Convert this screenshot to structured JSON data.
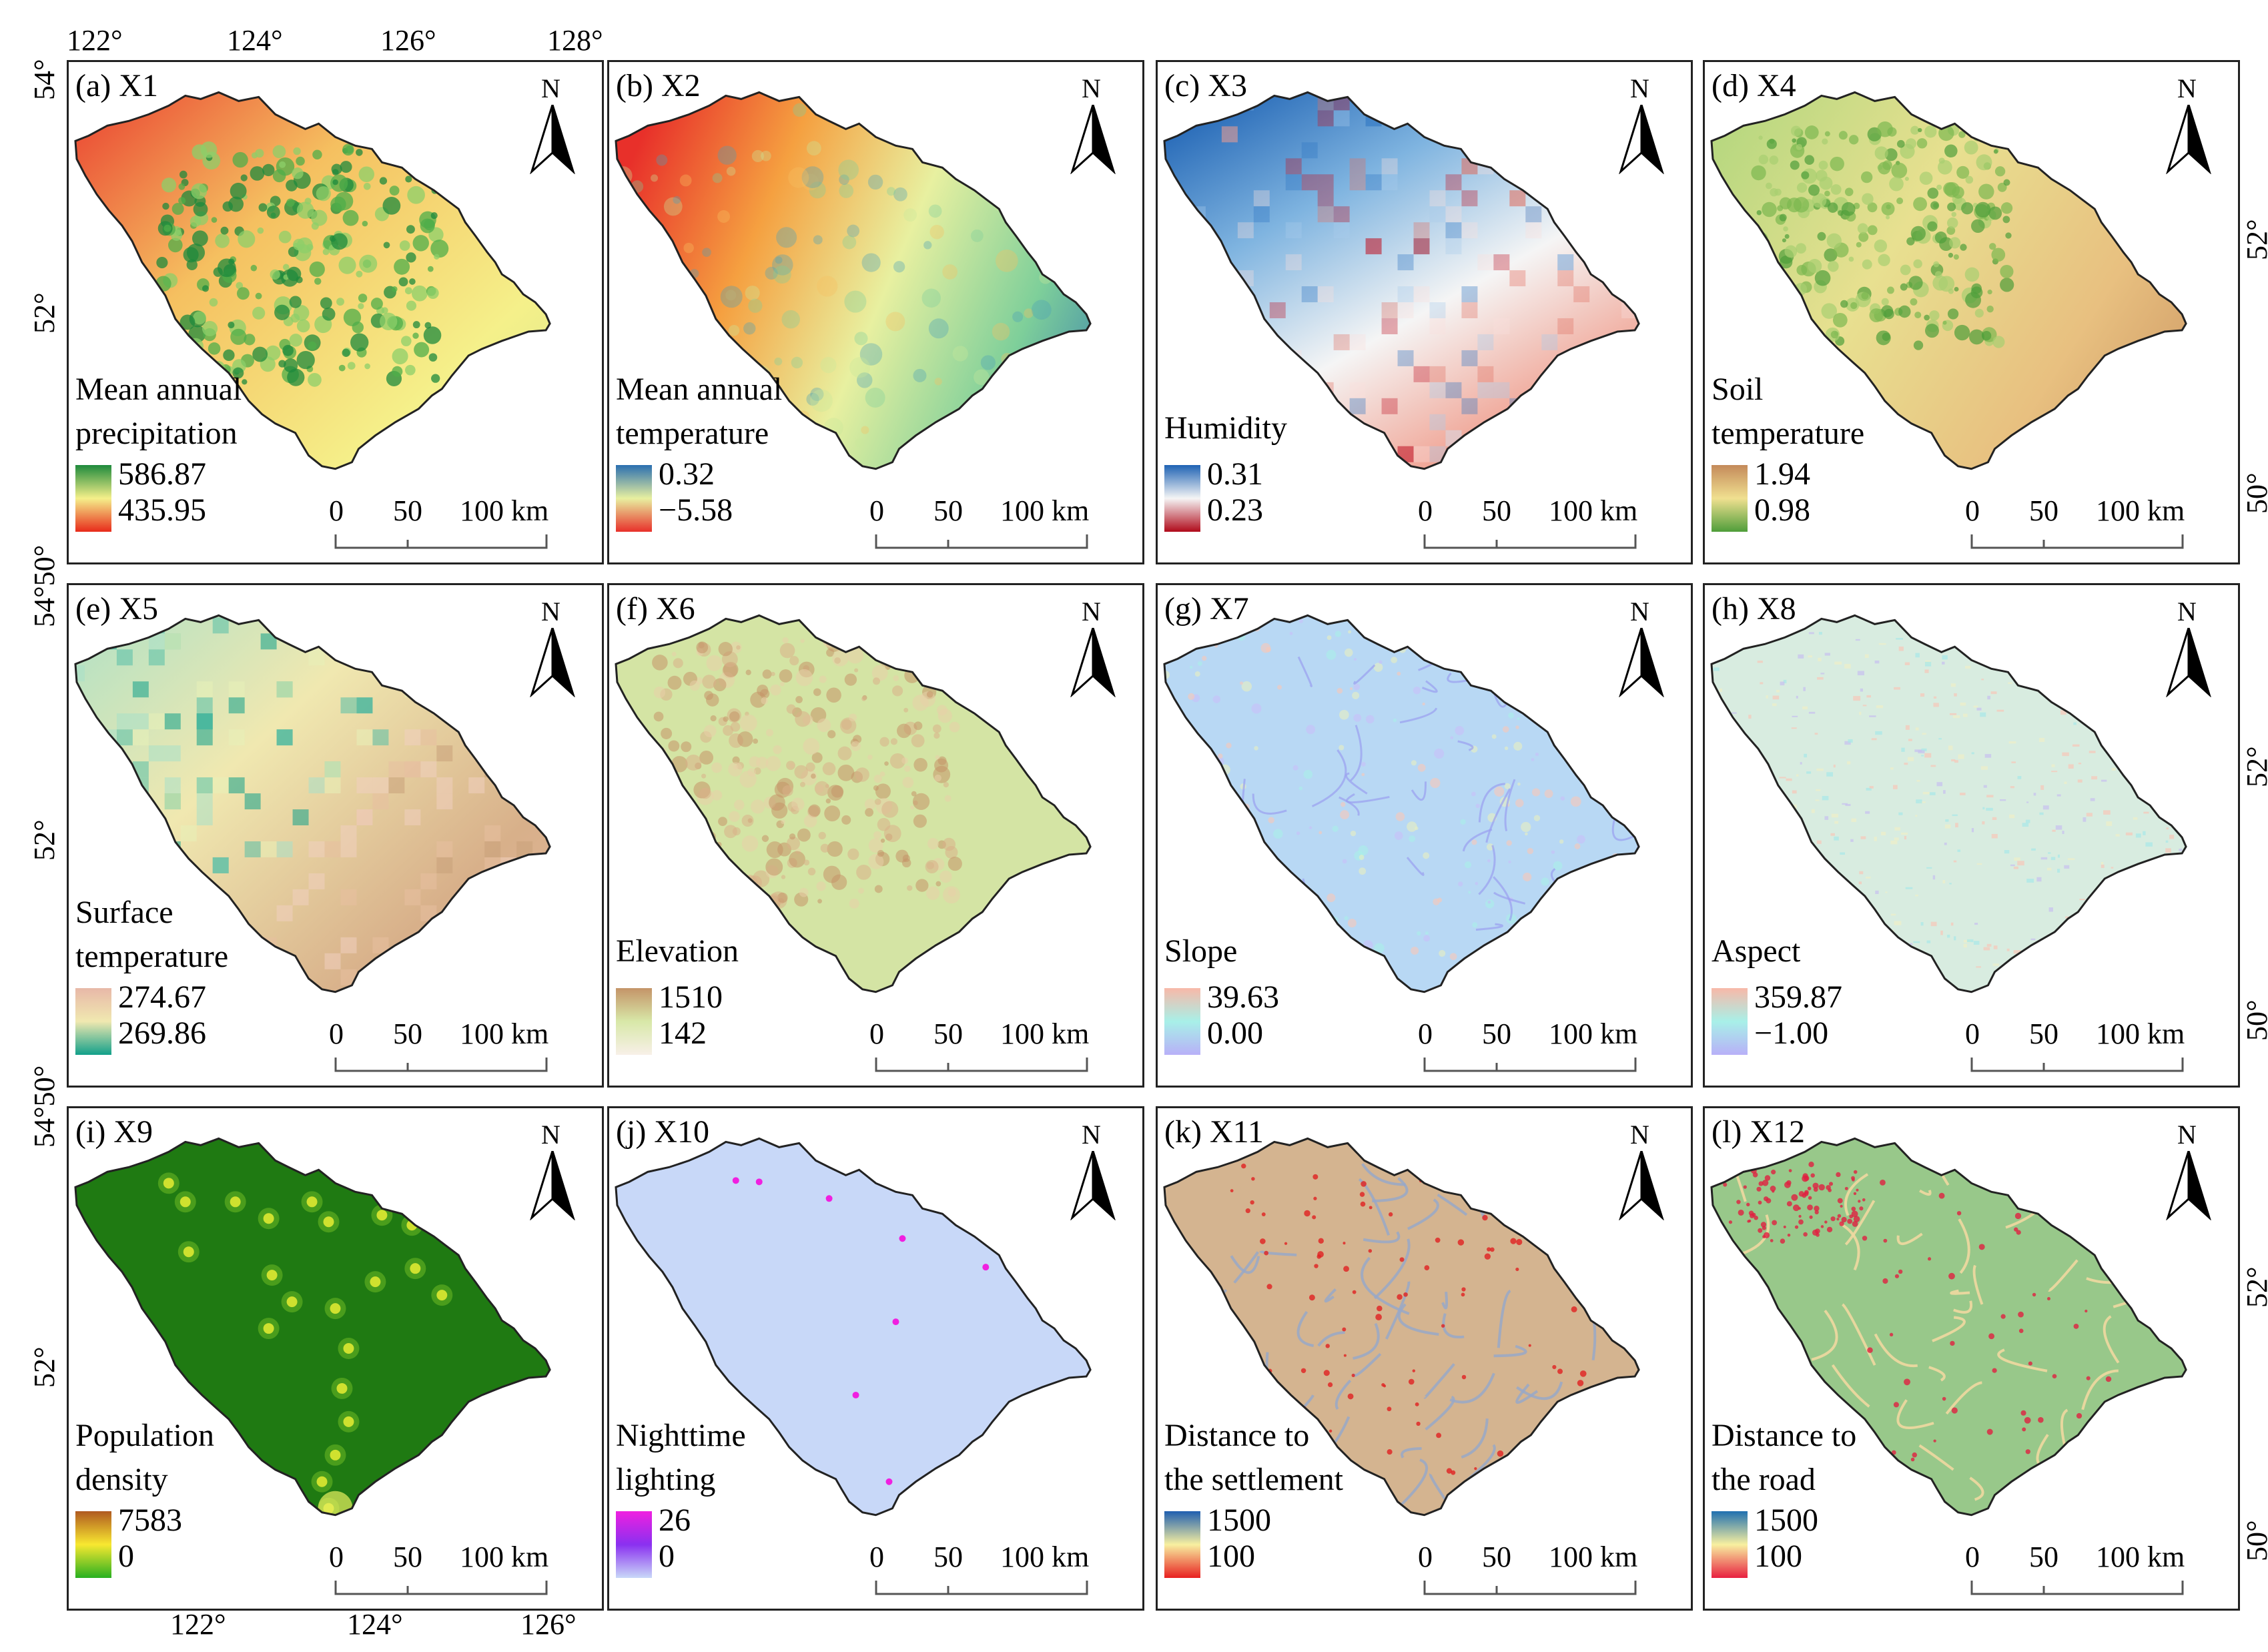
{
  "axes": {
    "top_lon_labels": [
      "122°",
      "124°",
      "126°",
      "128°"
    ],
    "bottom_lon_labels": [
      "122°",
      "124°",
      "126°"
    ],
    "left_lat_labels": [
      "54°",
      "52°",
      "54°50°",
      "52°",
      "54°50°",
      "52°"
    ],
    "right_lat_labels": [
      "52°",
      "50°",
      "52°",
      "50°",
      "52°",
      "50°"
    ]
  },
  "north_arrow": {
    "letter": "N",
    "icon": "north-arrow-icon"
  },
  "scale_bar": {
    "zero": "0",
    "mid": "50",
    "end": "100 km"
  },
  "panels": [
    {
      "id": "X1",
      "label": "(a) X1",
      "legend_title": [
        "Mean annual",
        "precipitation"
      ],
      "max": "586.87",
      "min": "435.95",
      "ramp": [
        "#1e8a3c",
        "#f5f08a",
        "#e82a1a"
      ],
      "pattern": "precip"
    },
    {
      "id": "X2",
      "label": "(b) X2",
      "legend_title": [
        "Mean annual",
        "temperature"
      ],
      "max": "0.32",
      "min": "−5.58",
      "ramp": [
        "#2a6fb0",
        "#e8f0a0",
        "#e8302a"
      ],
      "pattern": "temp"
    },
    {
      "id": "X3",
      "label": "(c) X3",
      "legend_title": [
        "Humidity"
      ],
      "max": "0.31",
      "min": "0.23",
      "ramp": [
        "#1f63b4",
        "#f5f5f5",
        "#b00a1a"
      ],
      "pattern": "humid"
    },
    {
      "id": "X4",
      "label": "(d) X4",
      "legend_title": [
        "Soil",
        "temperature"
      ],
      "max": "1.94",
      "min": "0.98",
      "ramp": [
        "#c48a5a",
        "#f0e090",
        "#4f9e3a"
      ],
      "pattern": "soil"
    },
    {
      "id": "X5",
      "label": "(e) X5",
      "legend_title": [
        "Surface",
        "temperature"
      ],
      "max": "274.67",
      "min": "269.86",
      "ramp": [
        "#e8b8a8",
        "#f0e8b0",
        "#12a08a"
      ],
      "pattern": "surface"
    },
    {
      "id": "X6",
      "label": "(f) X6",
      "legend_title": [
        "Elevation"
      ],
      "max": "1510",
      "min": "142",
      "ramp": [
        "#c49468",
        "#d8e8a8",
        "#f8f0e8"
      ],
      "pattern": "elev"
    },
    {
      "id": "X7",
      "label": "(g) X7",
      "legend_title": [
        "Slope"
      ],
      "max": "39.63",
      "min": "0.00",
      "ramp": [
        "#f8b8a8",
        "#a8f0e8",
        "#b8b0f8"
      ],
      "pattern": "slope"
    },
    {
      "id": "X8",
      "label": "(h) X8",
      "legend_title": [
        "Aspect"
      ],
      "max": "359.87",
      "min": "−1.00",
      "ramp": [
        "#f8b8a8",
        "#a8f0e8",
        "#b8b0f8"
      ],
      "pattern": "aspect"
    },
    {
      "id": "X9",
      "label": "(i) X9",
      "legend_title": [
        "Population",
        "density"
      ],
      "max": "7583",
      "min": "0",
      "ramp": [
        "#b05a20",
        "#f8e830",
        "#28b020"
      ],
      "pattern": "pop"
    },
    {
      "id": "X10",
      "label": "(j) X10",
      "legend_title": [
        "Nighttime",
        "lighting"
      ],
      "max": "26",
      "min": "0",
      "ramp": [
        "#f020e0",
        "#8a30f0",
        "#c8d8f8"
      ],
      "pattern": "night"
    },
    {
      "id": "X11",
      "label": "(k) X11",
      "legend_title": [
        "Distance to",
        "the settlement"
      ],
      "max": "1500",
      "min": "100",
      "ramp": [
        "#1f5fb0",
        "#f8f0a0",
        "#e82020"
      ],
      "pattern": "settle"
    },
    {
      "id": "X12",
      "label": "(l) X12",
      "legend_title": [
        "Distance to",
        "the road"
      ],
      "max": "1500",
      "min": "100",
      "ramp": [
        "#1f70b0",
        "#f8f0a0",
        "#e82040"
      ],
      "pattern": "road"
    }
  ]
}
